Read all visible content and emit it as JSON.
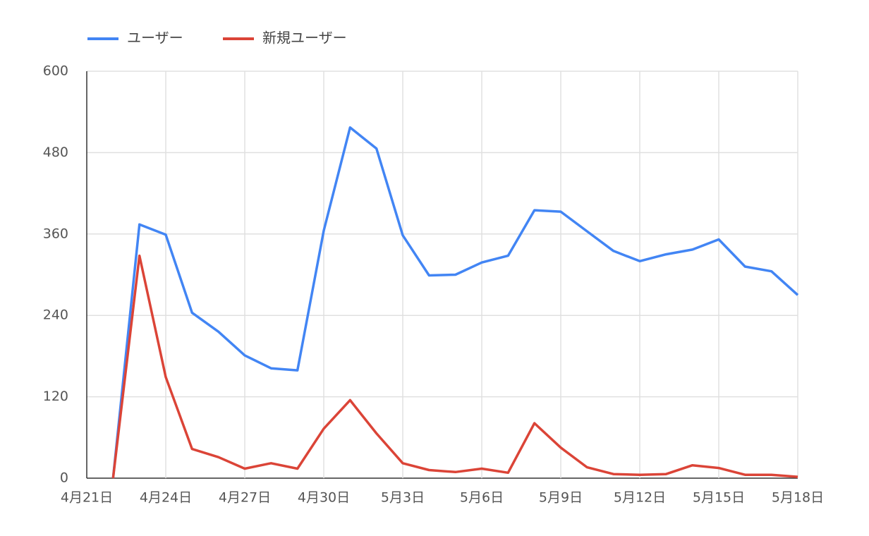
{
  "chart_data": {
    "type": "line",
    "categories": [
      "4月21日",
      null,
      null,
      "4月24日",
      null,
      null,
      "4月27日",
      null,
      null,
      "4月30日",
      null,
      null,
      "5月3日",
      null,
      null,
      "5月6日",
      null,
      null,
      "5月9日",
      null,
      null,
      "5月12日",
      null,
      null,
      "5月15日",
      null,
      null,
      "5月18日"
    ],
    "series": [
      {
        "name": "ユーザー",
        "color": "#4285f4",
        "values": [
          null,
          0,
          374,
          359,
          244,
          216,
          181,
          162,
          159,
          365,
          517,
          486,
          358,
          299,
          300,
          318,
          328,
          395,
          393,
          364,
          335,
          320,
          330,
          337,
          352,
          312,
          305,
          270
        ]
      },
      {
        "name": "新規ユーザー",
        "color": "#db4437",
        "values": [
          null,
          0,
          328,
          149,
          43,
          31,
          14,
          22,
          14,
          73,
          115,
          66,
          22,
          12,
          9,
          14,
          8,
          81,
          45,
          16,
          6,
          5,
          6,
          19,
          15,
          5,
          5,
          2
        ]
      }
    ],
    "ylim": [
      0,
      600
    ],
    "yticks": [
      0,
      120,
      240,
      360,
      480,
      600
    ],
    "grid": true,
    "legend": "top-left"
  }
}
